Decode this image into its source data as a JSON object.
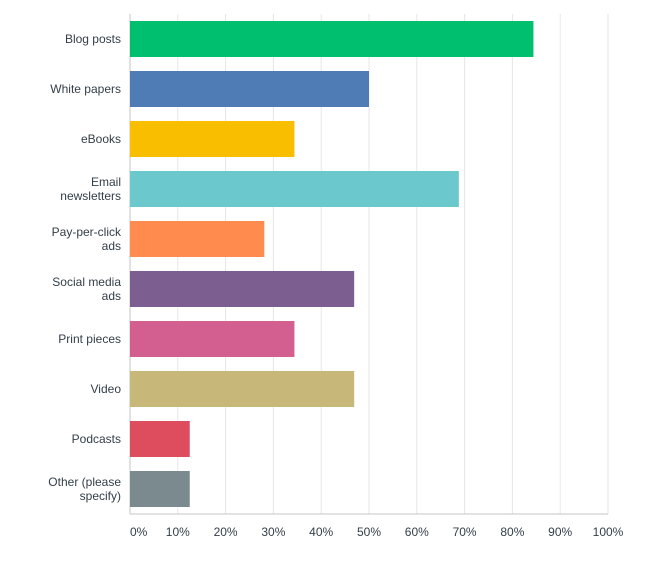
{
  "chart_data": {
    "type": "bar",
    "orientation": "horizontal",
    "categories": [
      "Blog posts",
      "White papers",
      "eBooks",
      "Email newsletters",
      "Pay-per-click ads",
      "Social media ads",
      "Print pieces",
      "Video",
      "Podcasts",
      "Other (please specify)"
    ],
    "category_label_lines": [
      [
        "Blog posts"
      ],
      [
        "White papers"
      ],
      [
        "eBooks"
      ],
      [
        "Email",
        "newsletters"
      ],
      [
        "Pay-per-click",
        "ads"
      ],
      [
        "Social media",
        "ads"
      ],
      [
        "Print pieces"
      ],
      [
        "Video"
      ],
      [
        "Podcasts"
      ],
      [
        "Other (please",
        "specify)"
      ]
    ],
    "values": [
      84.4,
      50.0,
      34.4,
      68.8,
      28.1,
      46.9,
      34.4,
      46.9,
      12.5,
      12.5
    ],
    "colors": [
      "#00bf6f",
      "#507cb6",
      "#f9be00",
      "#6bc8cd",
      "#ff8b4f",
      "#7d5e90",
      "#d25f90",
      "#c7b879",
      "#dd4d5e",
      "#7b8a8f"
    ],
    "x_ticks": [
      "0%",
      "10%",
      "20%",
      "30%",
      "40%",
      "50%",
      "60%",
      "70%",
      "80%",
      "90%",
      "100%"
    ],
    "xlim": [
      0,
      100
    ],
    "grid": true,
    "title": "",
    "xlabel": "",
    "ylabel": ""
  }
}
